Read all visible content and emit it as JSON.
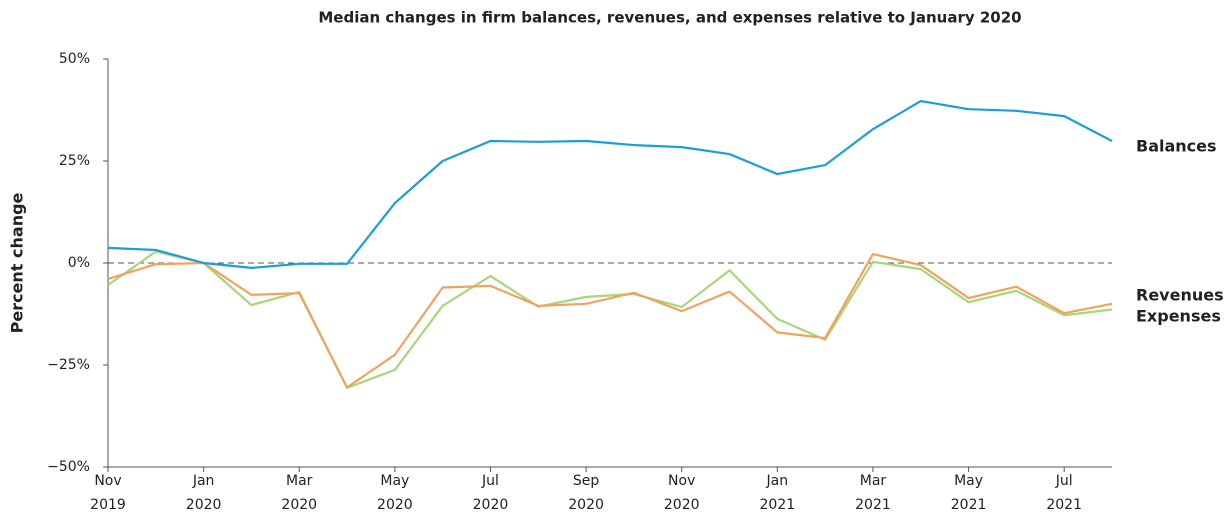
{
  "chart_data": {
    "type": "line",
    "title": "Median changes in firm balances, revenues, and expenses relative to January 2020",
    "y_label": "Percent change",
    "categories": [
      "Nov 2019",
      null,
      "Jan 2020",
      null,
      "Mar 2020",
      null,
      "May 2020",
      null,
      "Jul 2020",
      null,
      "Sep 2020",
      null,
      "Nov 2020",
      null,
      "Jan 2021",
      null,
      "Mar 2021",
      null,
      "May 2021",
      null,
      "Jul 2021",
      null
    ],
    "series": [
      {
        "name": "Balances",
        "color": "#1a9ed8",
        "label_color": "#2a7ab8",
        "values": [
          3.7,
          3.2,
          0,
          -1.2,
          -0.2,
          -0.2,
          14.7,
          25,
          29.9,
          29.7,
          29.9,
          28.9,
          28.4,
          26.7,
          21.8,
          24,
          32.8,
          39.7,
          37.7,
          37.3,
          36,
          29.9
        ]
      },
      {
        "name": "Revenues",
        "color": "#f0a35e",
        "label_color": "#c8713b",
        "values": [
          -3.9,
          -0.3,
          0,
          -7.8,
          -7.4,
          -30.5,
          -22.5,
          -6,
          -5.6,
          -10.5,
          -10,
          -7.3,
          -11.8,
          -7,
          -17,
          -18.4,
          2.2,
          -0.5,
          -8.6,
          -5.8,
          -12.3,
          -10
        ]
      },
      {
        "name": "Expenses",
        "color": "#a8d67a",
        "label_color": "#5a7a2e",
        "values": [
          -5.4,
          2.8,
          0,
          -10.3,
          -7.1,
          -30.6,
          -26.2,
          -10.5,
          -3.2,
          -10.7,
          -8.3,
          -7.6,
          -10.8,
          -1.8,
          -13.7,
          -18.8,
          0.3,
          -1.5,
          -9.6,
          -6.8,
          -12.8,
          -11.4
        ]
      }
    ],
    "ylim": [
      -50,
      50
    ],
    "yticks": [
      {
        "value": -50,
        "label": "−50%"
      },
      {
        "value": -25,
        "label": "−25%"
      },
      {
        "value": 0,
        "label": "0%"
      },
      {
        "value": 25,
        "label": "25%"
      },
      {
        "value": 50,
        "label": "50%"
      }
    ],
    "reference_line": 0,
    "grid": false
  }
}
